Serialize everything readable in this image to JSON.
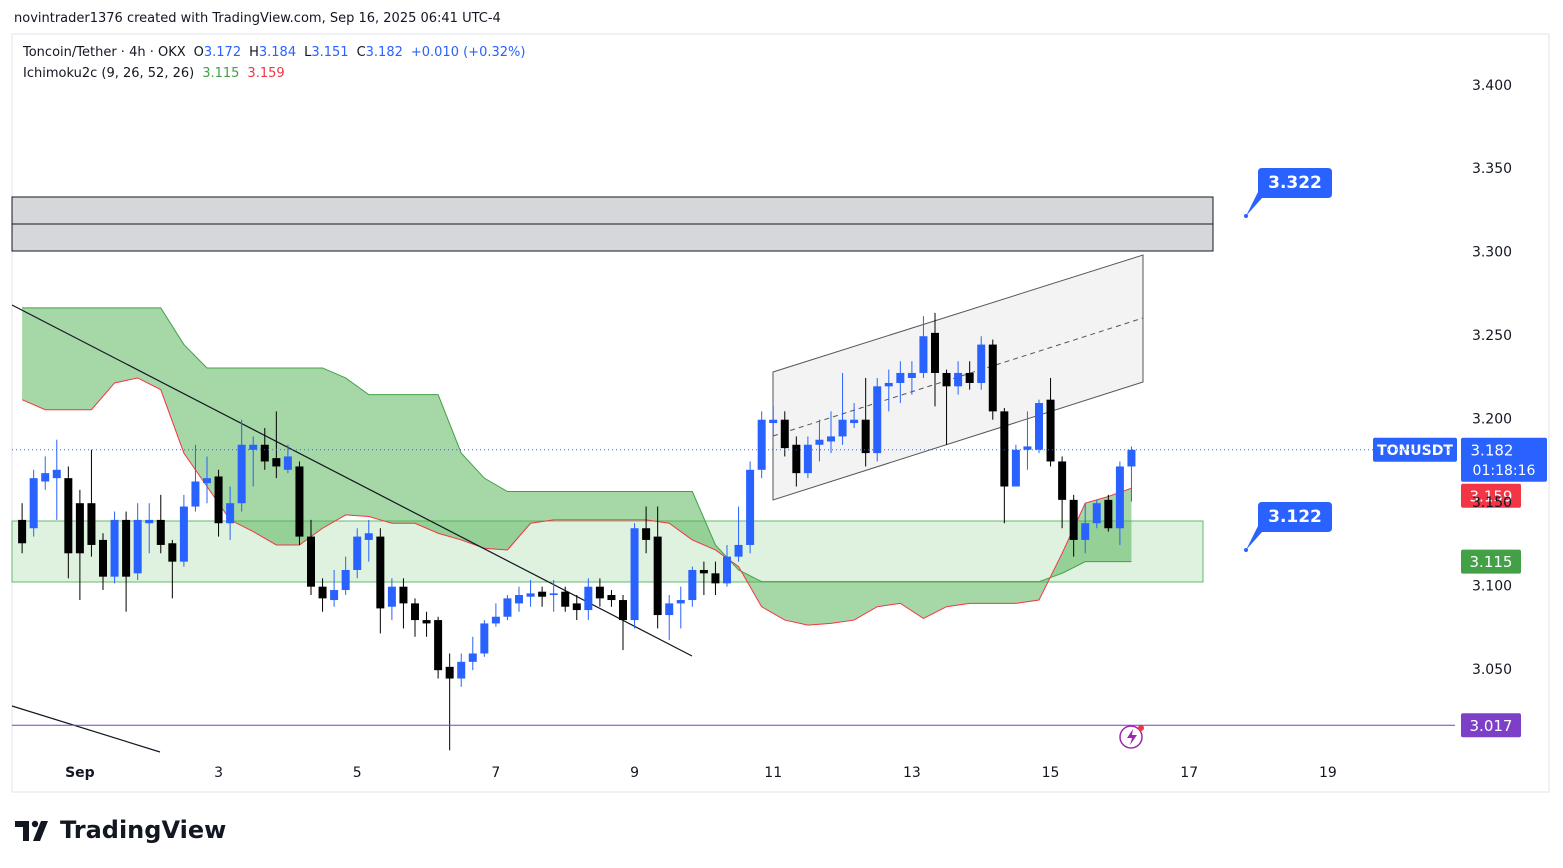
{
  "header": {
    "attribution": "novintrader1376 created with TradingView.com, Sep 16, 2025 06:41 UTC-4"
  },
  "footer": {
    "logo_text": "TradingView"
  },
  "chart_data": {
    "type": "candlestick",
    "title": "Toncoin/Tether · 4h · OKX",
    "ohlc_labels": [
      "O",
      "H",
      "L",
      "C"
    ],
    "change_label": "+0.010 (+0.32%)",
    "symbol": "TONUSDT",
    "countdown": "01:18:16",
    "up_color": "#2962ff",
    "down_color": "#000000",
    "x": [
      -20,
      -16,
      -12,
      -8,
      -4,
      0,
      4,
      8,
      12,
      16,
      20,
      24,
      28,
      32,
      36,
      40,
      44,
      48,
      52,
      56,
      60,
      64,
      68,
      72,
      76,
      80,
      84,
      88,
      92,
      96,
      100,
      104,
      108,
      112,
      116,
      120,
      124,
      128,
      132,
      136,
      140,
      144,
      148,
      152,
      156,
      160,
      164,
      168,
      172,
      176,
      180,
      184,
      188,
      192,
      196,
      200,
      204,
      208,
      212,
      216,
      220,
      224,
      228,
      232,
      236,
      240,
      244,
      248,
      252,
      256,
      260,
      264,
      268,
      272,
      276,
      280,
      284,
      288,
      292,
      296,
      300,
      304,
      308,
      312,
      316,
      320,
      324,
      328,
      332,
      336,
      340,
      344,
      348,
      352,
      356,
      360,
      364
    ],
    "open": [
      3.14,
      3.135,
      3.163,
      3.165,
      3.165,
      3.15,
      3.15,
      3.128,
      3.106,
      3.14,
      3.108,
      3.138,
      3.14,
      3.126,
      3.115,
      3.148,
      3.162,
      3.166,
      3.138,
      3.15,
      3.182,
      3.185,
      3.177,
      3.17,
      3.172,
      3.13,
      3.1,
      3.092,
      3.098,
      3.11,
      3.128,
      3.13,
      3.088,
      3.1,
      3.09,
      3.08,
      3.08,
      3.052,
      3.045,
      3.055,
      3.06,
      3.078,
      3.082,
      3.09,
      3.094,
      3.097,
      3.095,
      3.097,
      3.09,
      3.086,
      3.1,
      3.095,
      3.092,
      3.08,
      3.135,
      3.13,
      3.083,
      3.09,
      3.092,
      3.11,
      3.108,
      3.102,
      3.118,
      3.125,
      3.17,
      3.198,
      3.2,
      3.185,
      3.168,
      3.185,
      3.187,
      3.19,
      3.198,
      3.2,
      3.18,
      3.22,
      3.222,
      3.225,
      3.228,
      3.252,
      3.228,
      3.22,
      3.228,
      3.222,
      3.245,
      3.205,
      3.16,
      3.182,
      3.182,
      3.212,
      3.175,
      3.152,
      3.128,
      3.138,
      3.152,
      3.135,
      3.172
    ],
    "high": [
      3.15,
      3.17,
      3.178,
      3.188,
      3.172,
      3.158,
      3.182,
      3.132,
      3.145,
      3.145,
      3.15,
      3.15,
      3.155,
      3.128,
      3.155,
      3.185,
      3.178,
      3.17,
      3.16,
      3.2,
      3.19,
      3.195,
      3.205,
      3.185,
      3.175,
      3.14,
      3.105,
      3.11,
      3.118,
      3.135,
      3.14,
      3.135,
      3.105,
      3.105,
      3.093,
      3.085,
      3.082,
      3.06,
      3.06,
      3.07,
      3.08,
      3.09,
      3.095,
      3.1,
      3.104,
      3.1,
      3.104,
      3.1,
      3.095,
      3.105,
      3.105,
      3.098,
      3.095,
      3.138,
      3.148,
      3.148,
      3.095,
      3.1,
      3.112,
      3.115,
      3.115,
      3.125,
      3.148,
      3.175,
      3.205,
      3.208,
      3.205,
      3.19,
      3.19,
      3.2,
      3.205,
      3.228,
      3.21,
      3.225,
      3.225,
      3.23,
      3.235,
      3.235,
      3.262,
      3.264,
      3.23,
      3.235,
      3.235,
      3.25,
      3.248,
      3.207,
      3.185,
      3.205,
      3.212,
      3.225,
      3.178,
      3.155,
      3.15,
      3.152,
      3.155,
      3.175,
      3.184
    ],
    "low": [
      3.12,
      3.13,
      3.158,
      3.14,
      3.105,
      3.092,
      3.118,
      3.098,
      3.102,
      3.085,
      3.104,
      3.12,
      3.12,
      3.093,
      3.112,
      3.145,
      3.15,
      3.13,
      3.128,
      3.145,
      3.16,
      3.17,
      3.165,
      3.168,
      3.125,
      3.095,
      3.085,
      3.088,
      3.095,
      3.105,
      3.115,
      3.072,
      3.08,
      3.075,
      3.07,
      3.07,
      3.045,
      3.002,
      3.04,
      3.05,
      3.058,
      3.076,
      3.08,
      3.085,
      3.088,
      3.088,
      3.085,
      3.085,
      3.08,
      3.08,
      3.088,
      3.088,
      3.062,
      3.075,
      3.12,
      3.075,
      3.068,
      3.075,
      3.088,
      3.095,
      3.095,
      3.1,
      3.115,
      3.12,
      3.165,
      3.19,
      3.178,
      3.16,
      3.165,
      3.175,
      3.18,
      3.185,
      3.195,
      3.172,
      3.175,
      3.205,
      3.21,
      3.215,
      3.225,
      3.208,
      3.185,
      3.215,
      3.218,
      3.218,
      3.2,
      3.138,
      3.16,
      3.17,
      3.18,
      3.172,
      3.135,
      3.118,
      3.12,
      3.135,
      3.133,
      3.125,
      3.151
    ],
    "close": [
      3.126,
      3.165,
      3.168,
      3.17,
      3.12,
      3.12,
      3.125,
      3.106,
      3.14,
      3.106,
      3.14,
      3.14,
      3.125,
      3.115,
      3.148,
      3.163,
      3.165,
      3.138,
      3.15,
      3.185,
      3.185,
      3.175,
      3.172,
      3.178,
      3.13,
      3.1,
      3.093,
      3.098,
      3.11,
      3.13,
      3.132,
      3.087,
      3.1,
      3.09,
      3.08,
      3.078,
      3.05,
      3.045,
      3.055,
      3.06,
      3.078,
      3.082,
      3.093,
      3.095,
      3.096,
      3.094,
      3.096,
      3.088,
      3.086,
      3.1,
      3.093,
      3.092,
      3.08,
      3.135,
      3.128,
      3.083,
      3.09,
      3.092,
      3.11,
      3.108,
      3.102,
      3.118,
      3.125,
      3.17,
      3.2,
      3.2,
      3.183,
      3.168,
      3.185,
      3.188,
      3.19,
      3.2,
      3.2,
      3.18,
      3.22,
      3.222,
      3.228,
      3.228,
      3.25,
      3.228,
      3.22,
      3.228,
      3.222,
      3.245,
      3.205,
      3.16,
      3.182,
      3.184,
      3.21,
      3.175,
      3.152,
      3.128,
      3.138,
      3.15,
      3.135,
      3.172,
      3.182
    ],
    "indicator": {
      "name": "Ichimoku2c (9, 26, 52, 26)",
      "fill": "rgba(76,175,80,0.5)",
      "x": [
        -20,
        -12,
        -4,
        4,
        12,
        20,
        28,
        36,
        44,
        52,
        60,
        68,
        76,
        84,
        92,
        100,
        108,
        116,
        124,
        132,
        140,
        148,
        156,
        164,
        172,
        180,
        188,
        196,
        204,
        212,
        220,
        228,
        236,
        244,
        252,
        260,
        268,
        276,
        284,
        292,
        300,
        308,
        316,
        324,
        332,
        340,
        348,
        356,
        364
      ],
      "series": [
        {
          "color": "#43a047",
          "values": [
            3.267,
            3.267,
            3.267,
            3.267,
            3.267,
            3.267,
            3.267,
            3.245,
            3.231,
            3.231,
            3.231,
            3.231,
            3.231,
            3.231,
            3.225,
            3.215,
            3.215,
            3.215,
            3.215,
            3.18,
            3.165,
            3.157,
            3.157,
            3.157,
            3.157,
            3.157,
            3.157,
            3.157,
            3.157,
            3.157,
            3.125,
            3.11,
            3.103,
            3.103,
            3.103,
            3.103,
            3.103,
            3.103,
            3.103,
            3.103,
            3.103,
            3.103,
            3.103,
            3.103,
            3.103,
            3.108,
            3.115,
            3.115,
            3.115
          ]
        },
        {
          "color": "#f23645",
          "values": [
            3.212,
            3.206,
            3.206,
            3.206,
            3.222,
            3.225,
            3.218,
            3.18,
            3.16,
            3.14,
            3.133,
            3.125,
            3.125,
            3.135,
            3.143,
            3.142,
            3.138,
            3.138,
            3.132,
            3.128,
            3.123,
            3.122,
            3.138,
            3.14,
            3.14,
            3.14,
            3.14,
            3.14,
            3.138,
            3.128,
            3.122,
            3.112,
            3.088,
            3.08,
            3.077,
            3.078,
            3.08,
            3.088,
            3.09,
            3.081,
            3.088,
            3.09,
            3.09,
            3.09,
            3.092,
            3.12,
            3.15,
            3.154,
            3.159
          ]
        }
      ]
    },
    "hline": 3.017,
    "hline_color": "#7e3fc8",
    "annotations": [
      3.322,
      3.122
    ],
    "annotation_color": "#2962ff",
    "xlim": [
      -23.5,
      476
    ],
    "xticks": [
      {
        "value": 0,
        "label": "Sep"
      },
      {
        "value": 48,
        "label": "3"
      },
      {
        "value": 96,
        "label": "5"
      },
      {
        "value": 144,
        "label": "7"
      },
      {
        "value": 192,
        "label": "9"
      },
      {
        "value": 240,
        "label": "11"
      },
      {
        "value": 288,
        "label": "13"
      },
      {
        "value": 336,
        "label": "15"
      },
      {
        "value": 384,
        "label": "17"
      },
      {
        "value": 432,
        "label": "19"
      }
    ],
    "ylim": [
      2.998,
      3.431
    ],
    "yticks": [
      {
        "value": 3.05,
        "label": "3.050"
      },
      {
        "value": 3.1,
        "label": "3.100"
      },
      {
        "value": 3.15,
        "label": "3.150"
      },
      {
        "value": 3.2,
        "label": "3.200"
      },
      {
        "value": 3.25,
        "label": "3.250"
      },
      {
        "value": 3.3,
        "label": "3.300"
      },
      {
        "value": 3.35,
        "label": "3.350"
      },
      {
        "value": 3.4,
        "label": "3.400"
      }
    ]
  }
}
